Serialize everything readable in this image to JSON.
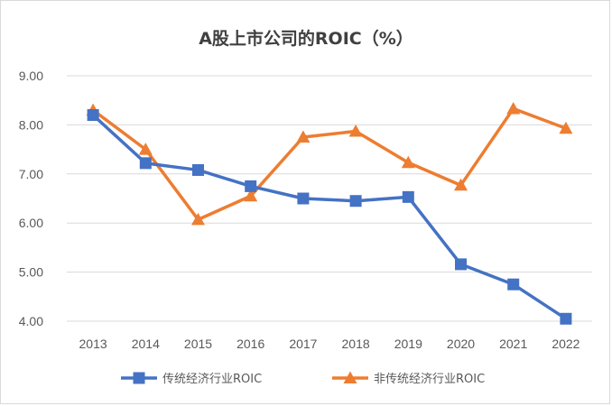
{
  "chart_data": {
    "type": "line",
    "title": "A股上市公司的ROIC（%）",
    "categories": [
      "2013",
      "2014",
      "2015",
      "2016",
      "2017",
      "2018",
      "2019",
      "2020",
      "2021",
      "2022"
    ],
    "series": [
      {
        "name": "传统经济行业ROIC",
        "color": "#4472C4",
        "marker": "square",
        "values": [
          8.2,
          7.22,
          7.08,
          6.75,
          6.5,
          6.45,
          6.53,
          5.16,
          4.75,
          4.05
        ]
      },
      {
        "name": "非传统经济行业ROIC",
        "color": "#ED7D31",
        "marker": "triangle",
        "values": [
          8.3,
          7.5,
          6.07,
          6.55,
          7.75,
          7.87,
          7.23,
          6.77,
          8.33,
          7.93
        ]
      }
    ],
    "ylim": [
      4.0,
      9.0
    ],
    "yticks": [
      "4.00",
      "5.00",
      "6.00",
      "7.00",
      "8.00",
      "9.00"
    ],
    "grid": true,
    "legend": "bottom"
  }
}
